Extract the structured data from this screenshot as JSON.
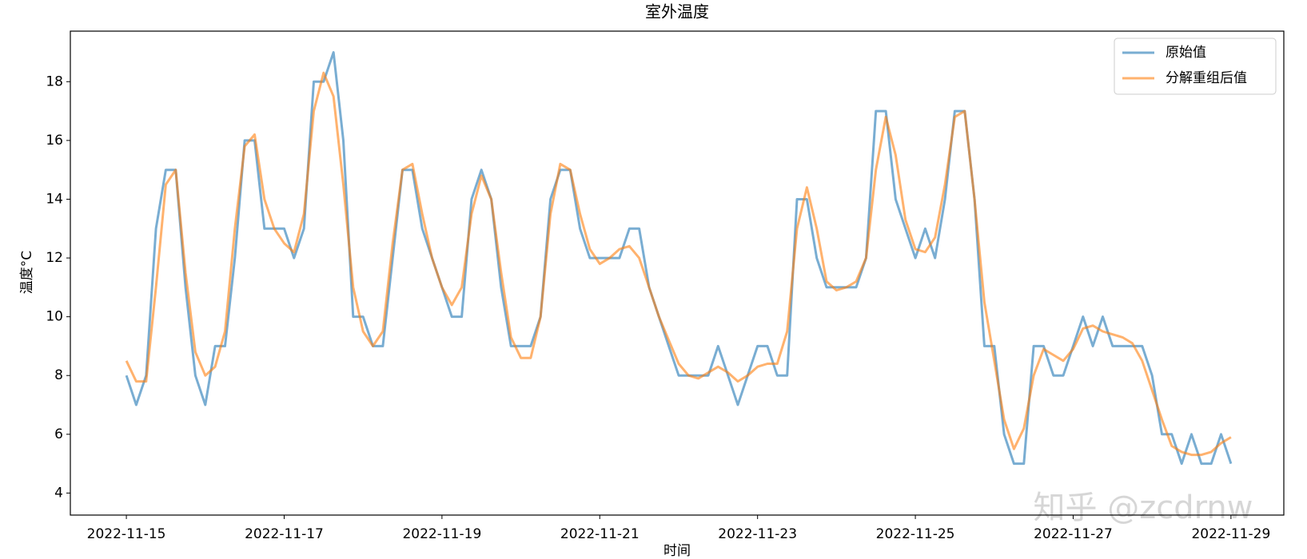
{
  "chart_data": {
    "type": "line",
    "title": "室外温度",
    "xlabel": "时间",
    "ylabel": "温度°C",
    "watermark": "知乎 @zcdrnw",
    "x": [
      15,
      15.125,
      15.25,
      15.375,
      15.5,
      15.625,
      15.75,
      15.875,
      16,
      16.125,
      16.25,
      16.375,
      16.5,
      16.625,
      16.75,
      16.875,
      17,
      17.125,
      17.25,
      17.375,
      17.5,
      17.625,
      17.75,
      17.875,
      18,
      18.125,
      18.25,
      18.375,
      18.5,
      18.625,
      18.75,
      18.875,
      19,
      19.125,
      19.25,
      19.375,
      19.5,
      19.625,
      19.75,
      19.875,
      20,
      20.125,
      20.25,
      20.375,
      20.5,
      20.625,
      20.75,
      20.875,
      21,
      21.125,
      21.25,
      21.375,
      21.5,
      21.625,
      21.75,
      21.875,
      22,
      22.125,
      22.25,
      22.375,
      22.5,
      22.625,
      22.75,
      22.875,
      23,
      23.125,
      23.25,
      23.375,
      23.5,
      23.625,
      23.75,
      23.875,
      24,
      24.125,
      24.25,
      24.375,
      24.5,
      24.625,
      24.75,
      24.875,
      25,
      25.125,
      25.25,
      25.375,
      25.5,
      25.625,
      25.75,
      25.875,
      26,
      26.125,
      26.25,
      26.375,
      26.5,
      26.625,
      26.75,
      26.875,
      27,
      27.125,
      27.25,
      27.375,
      27.5,
      27.625,
      27.75,
      27.875,
      28,
      28.125,
      28.25,
      28.375,
      28.5,
      28.625,
      28.75,
      28.875,
      29
    ],
    "series": [
      {
        "name": "原始值",
        "color": "#1f77b4",
        "values": [
          8,
          7,
          8,
          13,
          15,
          15,
          11,
          8,
          7,
          9,
          9,
          12,
          16,
          16,
          13,
          13,
          13,
          12,
          13,
          18,
          18,
          19,
          16,
          10,
          10,
          9,
          9,
          12,
          15,
          15,
          13,
          12,
          11,
          10,
          10,
          14,
          15,
          14,
          11,
          9,
          9,
          9,
          10,
          14,
          15,
          15,
          13,
          12,
          12,
          12,
          12,
          13,
          13,
          11,
          10,
          9,
          8,
          8,
          8,
          8,
          9,
          8,
          7,
          8,
          9,
          9,
          8,
          8,
          14,
          14,
          12,
          11,
          11,
          11,
          11,
          12,
          17,
          17,
          14,
          13,
          12,
          13,
          12,
          14,
          17,
          17,
          14,
          9,
          9,
          6,
          5,
          5,
          9,
          9,
          8,
          8,
          9,
          10,
          9,
          10,
          9,
          9,
          9,
          9,
          8,
          6,
          6,
          5,
          6,
          5,
          5,
          6,
          5
        ]
      },
      {
        "name": "分解重组后值",
        "color": "#ff7f0e",
        "values": [
          8.5,
          7.8,
          7.8,
          11,
          14.5,
          15,
          11.5,
          8.8,
          8,
          8.3,
          9.5,
          13,
          15.8,
          16.2,
          14,
          13,
          12.5,
          12.2,
          13.5,
          17,
          18.3,
          17.5,
          14.5,
          11,
          9.5,
          9,
          9.5,
          12.5,
          15,
          15.2,
          13.5,
          12,
          11,
          10.4,
          11,
          13.5,
          14.8,
          14,
          11.5,
          9.3,
          8.6,
          8.6,
          10,
          13.5,
          15.2,
          15,
          13.5,
          12.3,
          11.8,
          12,
          12.3,
          12.4,
          12,
          11,
          10,
          9.2,
          8.4,
          8,
          7.9,
          8.1,
          8.3,
          8.1,
          7.8,
          8,
          8.3,
          8.4,
          8.4,
          9.5,
          13,
          14.4,
          13,
          11.2,
          10.9,
          11,
          11.2,
          12,
          15,
          16.8,
          15.5,
          13.3,
          12.3,
          12.2,
          12.7,
          14.5,
          16.8,
          17,
          14,
          10.5,
          8.5,
          6.5,
          5.5,
          6.2,
          8,
          8.9,
          8.7,
          8.5,
          8.9,
          9.6,
          9.7,
          9.5,
          9.4,
          9.3,
          9.1,
          8.5,
          7.5,
          6.5,
          5.6,
          5.4,
          5.3,
          5.3,
          5.4,
          5.7,
          5.9
        ]
      }
    ],
    "xlim": [
      14.29,
      29.67
    ],
    "ylim": [
      3.25,
      19.72
    ],
    "xticks": [
      {
        "value": 15,
        "label": "2022-11-15"
      },
      {
        "value": 17,
        "label": "2022-11-17"
      },
      {
        "value": 19,
        "label": "2022-11-19"
      },
      {
        "value": 21,
        "label": "2022-11-21"
      },
      {
        "value": 23,
        "label": "2022-11-23"
      },
      {
        "value": 25,
        "label": "2022-11-25"
      },
      {
        "value": 27,
        "label": "2022-11-27"
      },
      {
        "value": 29,
        "label": "2022-11-29"
      }
    ],
    "yticks": [
      4,
      6,
      8,
      10,
      12,
      14,
      16,
      18
    ],
    "legend": "upper right"
  }
}
